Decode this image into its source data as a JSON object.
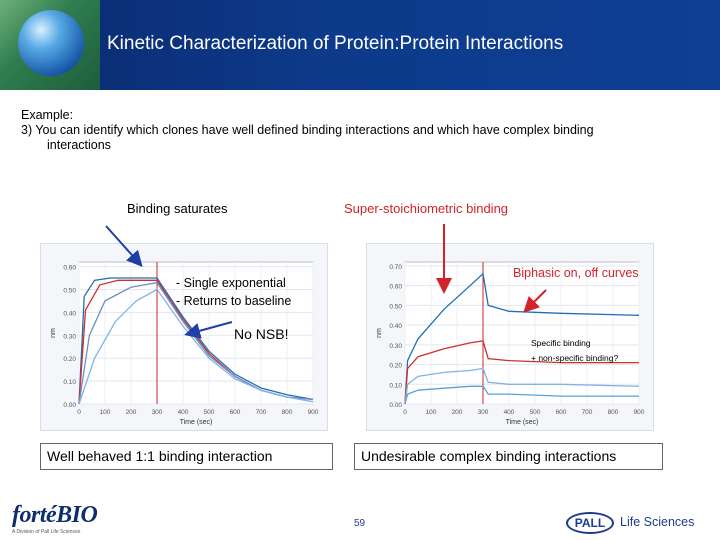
{
  "header": {
    "title": "Kinetic Characterization of Protein:Protein Interactions"
  },
  "intro": {
    "line1": "Example:",
    "line2": "3) You can identify which clones have well defined binding interactions and which have complex binding",
    "line3": "interactions"
  },
  "annotations": {
    "binding_saturates": "Binding saturates",
    "super_stoich": "Super-stoichiometric binding",
    "single_exp": "- Single exponential",
    "returns_baseline": "- Returns to baseline",
    "no_nsb": "No NSB!",
    "biphasic": "Biphasic on, off curves",
    "specific_binding": "Specific binding",
    "non_specific": "+ non-specific binding?"
  },
  "boxes": {
    "left": "Well behaved 1:1 binding interaction",
    "right": "Undesirable complex binding interactions"
  },
  "footer": {
    "logo": "fortéBIO",
    "logo_sub": "A Division of Pall Life Sciences",
    "page_number": "59",
    "pall": "PALL",
    "life_sciences": "Life Sciences"
  },
  "colors": {
    "header_bg": "#0d3a8a",
    "annotation_red": "#d3232a",
    "arrow_blue": "#1f3fa8"
  },
  "chart_data": [
    {
      "type": "line",
      "xlabel": "Time (sec)",
      "ylabel": "nm",
      "x_ticks": [
        0,
        100,
        200,
        300,
        400,
        500,
        600,
        700,
        800,
        900
      ],
      "y_ticks": [
        "0.00",
        "0.10",
        "0.20",
        "0.30",
        "0.40",
        "0.50",
        "0.60"
      ],
      "xlim": [
        0,
        900
      ],
      "ylim": [
        0,
        0.62
      ],
      "series": [
        {
          "color": "#1f6fb8",
          "points": [
            [
              0,
              0
            ],
            [
              20,
              0.47
            ],
            [
              60,
              0.54
            ],
            [
              120,
              0.55
            ],
            [
              300,
              0.55
            ],
            [
              400,
              0.38
            ],
            [
              500,
              0.23
            ],
            [
              600,
              0.13
            ],
            [
              700,
              0.07
            ],
            [
              800,
              0.04
            ],
            [
              900,
              0.02
            ]
          ]
        },
        {
          "color": "#c9302c",
          "points": [
            [
              0,
              0
            ],
            [
              25,
              0.41
            ],
            [
              80,
              0.52
            ],
            [
              150,
              0.54
            ],
            [
              300,
              0.54
            ],
            [
              400,
              0.37
            ],
            [
              500,
              0.22
            ],
            [
              600,
              0.12
            ],
            [
              700,
              0.06
            ],
            [
              800,
              0.03
            ],
            [
              900,
              0.02
            ]
          ]
        },
        {
          "color": "#6a8fc8",
          "points": [
            [
              0,
              0
            ],
            [
              40,
              0.3
            ],
            [
              100,
              0.45
            ],
            [
              200,
              0.51
            ],
            [
              300,
              0.53
            ],
            [
              400,
              0.36
            ],
            [
              500,
              0.21
            ],
            [
              600,
              0.12
            ],
            [
              700,
              0.06
            ],
            [
              800,
              0.03
            ],
            [
              900,
              0.02
            ]
          ]
        },
        {
          "color": "#7fb3e8",
          "points": [
            [
              0,
              0
            ],
            [
              60,
              0.2
            ],
            [
              140,
              0.36
            ],
            [
              220,
              0.45
            ],
            [
              300,
              0.5
            ],
            [
              400,
              0.34
            ],
            [
              500,
              0.2
            ],
            [
              600,
              0.11
            ],
            [
              700,
              0.06
            ],
            [
              800,
              0.03
            ],
            [
              900,
              0.01
            ]
          ]
        }
      ]
    },
    {
      "type": "line",
      "xlabel": "Time (sec)",
      "ylabel": "nm",
      "x_ticks": [
        0,
        100,
        200,
        300,
        400,
        500,
        600,
        700,
        800,
        900
      ],
      "y_ticks": [
        "0.00",
        "0.10",
        "0.20",
        "0.30",
        "0.40",
        "0.50",
        "0.60",
        "0.70"
      ],
      "xlim": [
        0,
        900
      ],
      "ylim": [
        0,
        0.72
      ],
      "series": [
        {
          "color": "#1f6fb8",
          "points": [
            [
              0,
              0
            ],
            [
              10,
              0.22
            ],
            [
              50,
              0.33
            ],
            [
              150,
              0.48
            ],
            [
              250,
              0.6
            ],
            [
              300,
              0.66
            ],
            [
              320,
              0.5
            ],
            [
              400,
              0.47
            ],
            [
              600,
              0.46
            ],
            [
              900,
              0.45
            ]
          ]
        },
        {
          "color": "#c9302c",
          "points": [
            [
              0,
              0
            ],
            [
              10,
              0.18
            ],
            [
              50,
              0.24
            ],
            [
              150,
              0.28
            ],
            [
              250,
              0.31
            ],
            [
              300,
              0.32
            ],
            [
              320,
              0.23
            ],
            [
              400,
              0.22
            ],
            [
              600,
              0.21
            ],
            [
              900,
              0.21
            ]
          ]
        },
        {
          "color": "#7fb3e8",
          "points": [
            [
              0,
              0
            ],
            [
              10,
              0.1
            ],
            [
              50,
              0.14
            ],
            [
              150,
              0.16
            ],
            [
              250,
              0.17
            ],
            [
              300,
              0.18
            ],
            [
              320,
              0.11
            ],
            [
              400,
              0.1
            ],
            [
              600,
              0.1
            ],
            [
              900,
              0.09
            ]
          ]
        },
        {
          "color": "#5aa0d8",
          "points": [
            [
              0,
              0
            ],
            [
              10,
              0.05
            ],
            [
              50,
              0.07
            ],
            [
              150,
              0.08
            ],
            [
              250,
              0.09
            ],
            [
              300,
              0.09
            ],
            [
              320,
              0.05
            ],
            [
              400,
              0.05
            ],
            [
              600,
              0.04
            ],
            [
              900,
              0.04
            ]
          ]
        }
      ]
    }
  ]
}
